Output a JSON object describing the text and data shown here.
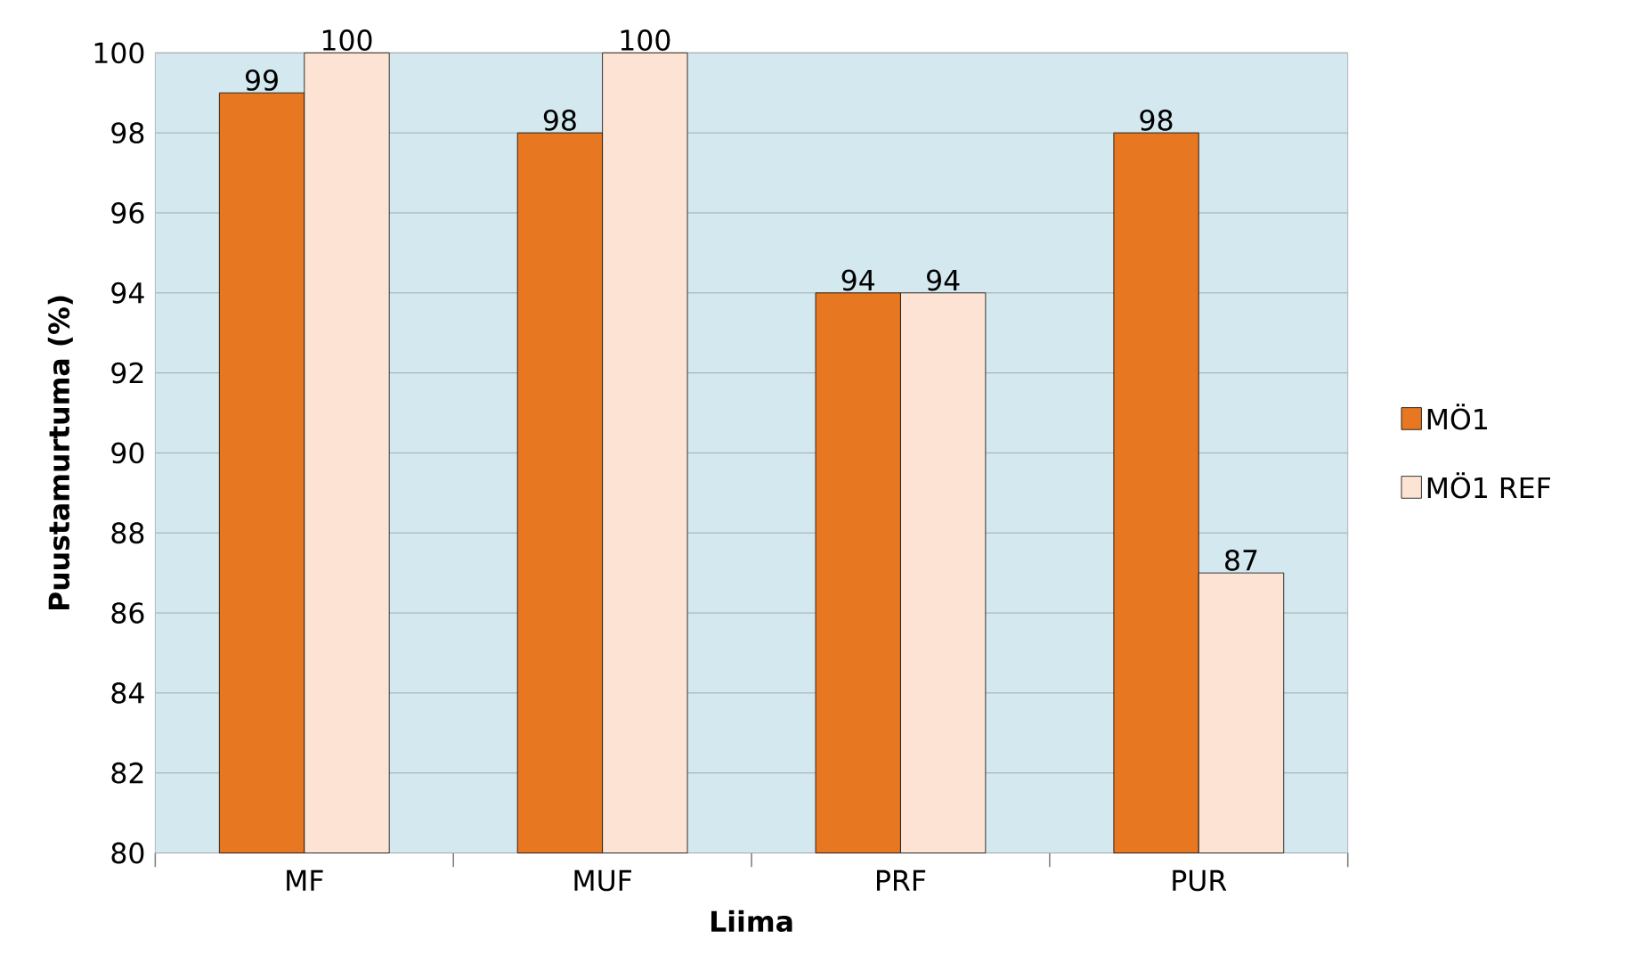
{
  "chart_data": {
    "type": "bar",
    "xlabel": "Liima",
    "ylabel": "Puustamurtuma (%)",
    "categories": [
      "MF",
      "MUF",
      "PRF",
      "PUR"
    ],
    "series": [
      {
        "name": "MÖ1",
        "color": "#e87722",
        "values": [
          99,
          98,
          94,
          98
        ]
      },
      {
        "name": "MÖ1 REF",
        "color": "#fde3d3",
        "values": [
          100,
          100,
          94,
          87
        ]
      }
    ],
    "ylim": [
      80,
      100
    ],
    "yticks": [
      80,
      82,
      84,
      86,
      88,
      90,
      92,
      94,
      96,
      98,
      100
    ],
    "grid": "y",
    "legend": "right",
    "data_labels": true
  }
}
